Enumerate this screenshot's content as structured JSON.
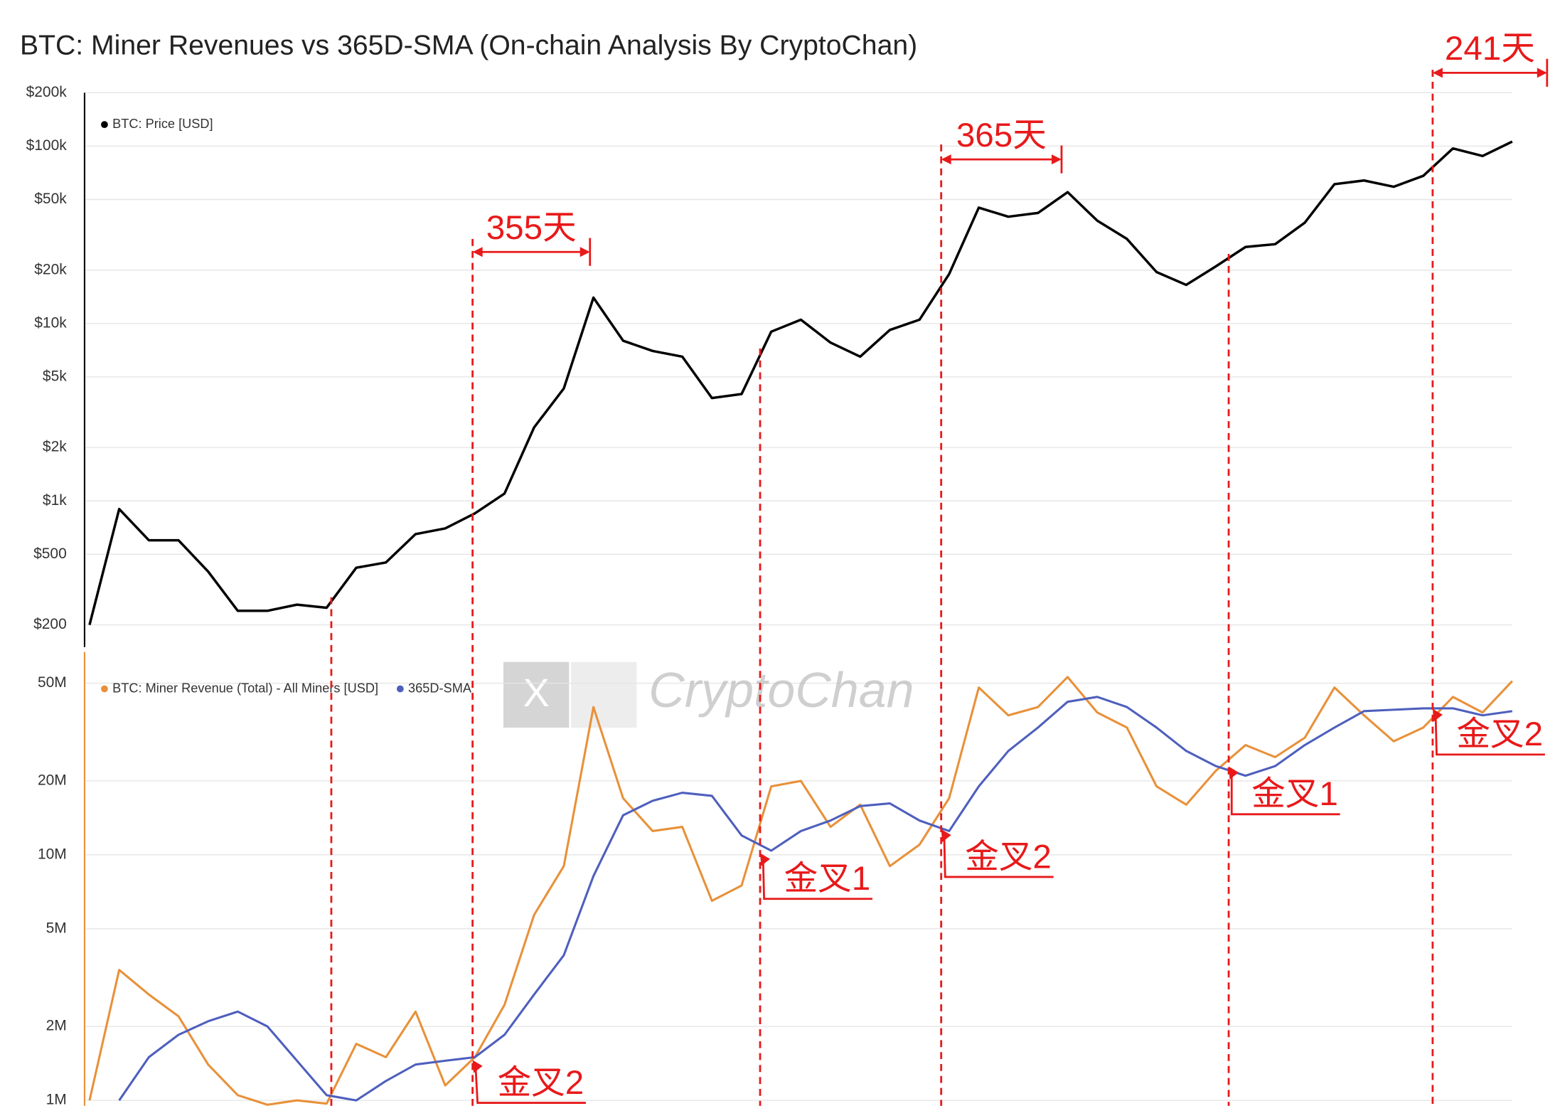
{
  "chart_data": [
    {
      "type": "line",
      "title": "BTC: Miner Revenues vs 365D-SMA (On-chain Analysis By CryptoChan)",
      "log": true,
      "grid": true,
      "ylim": [
        150,
        200000
      ],
      "yticks": [
        {
          "value": 200,
          "label": "$200"
        },
        {
          "value": 500,
          "label": "$500"
        },
        {
          "value": 1000,
          "label": "$1k"
        },
        {
          "value": 2000,
          "label": "$2k"
        },
        {
          "value": 5000,
          "label": "$5k"
        },
        {
          "value": 10000,
          "label": "$10k"
        },
        {
          "value": 20000,
          "label": "$20k"
        },
        {
          "value": 50000,
          "label": "$50k"
        },
        {
          "value": 100000,
          "label": "$100k"
        },
        {
          "value": 200000,
          "label": "$200k"
        }
      ],
      "series": [
        {
          "name": "BTC: Price [USD]",
          "color": "#000000",
          "values": [
            200,
            900,
            600,
            600,
            400,
            240,
            240,
            260,
            250,
            420,
            450,
            650,
            700,
            850,
            1100,
            2600,
            4300,
            14000,
            8000,
            7000,
            6500,
            3800,
            4000,
            9000,
            10500,
            7800,
            6500,
            9200,
            10500,
            19000,
            45000,
            40000,
            42000,
            55000,
            38000,
            30000,
            19500,
            16500,
            21000,
            27000,
            28000,
            37000,
            61000,
            64000,
            59000,
            68000,
            97000,
            88000,
            106000
          ]
        }
      ],
      "annotations": [
        "355天",
        "365天",
        "241天"
      ]
    },
    {
      "type": "line",
      "log": true,
      "grid": true,
      "ylim": [
        950000,
        67000000
      ],
      "yticks": [
        {
          "value": 1000000,
          "label": "1M"
        },
        {
          "value": 2000000,
          "label": "2M"
        },
        {
          "value": 5000000,
          "label": "5M"
        },
        {
          "value": 10000000,
          "label": "10M"
        },
        {
          "value": 20000000,
          "label": "20M"
        },
        {
          "value": 50000000,
          "label": "50M"
        }
      ],
      "series": [
        {
          "name": "BTC: Miner Revenue (Total) - All Miners [USD]",
          "color": "#e8913a",
          "values": [
            1000000,
            3400000,
            2700000,
            2200000,
            1400000,
            1050000,
            960000,
            1000000,
            970000,
            1700000,
            1500000,
            2300000,
            1150000,
            1500000,
            2450000,
            5700000,
            9000000,
            40000000,
            17000000,
            12500000,
            13000000,
            6500000,
            7500000,
            19000000,
            20000000,
            13000000,
            16000000,
            9000000,
            11000000,
            17000000,
            48000000,
            37000000,
            40000000,
            53000000,
            38000000,
            33000000,
            19000000,
            16000000,
            22000000,
            28000000,
            25000000,
            30000000,
            48000000,
            37000000,
            29000000,
            33000000,
            44000000,
            38000000,
            51000000
          ]
        },
        {
          "name": "365D-SMA",
          "color": "#4e5fbd",
          "values": [
            null,
            1000000,
            1500000,
            1850000,
            2100000,
            2300000,
            2000000,
            1450000,
            1050000,
            1000000,
            1200000,
            1400000,
            1450000,
            1500000,
            1850000,
            2700000,
            3900000,
            8200000,
            14500000,
            16600000,
            17900000,
            17400000,
            12000000,
            10400000,
            12500000,
            13800000,
            15800000,
            16200000,
            13800000,
            12500000,
            19000000,
            26500000,
            33000000,
            42000000,
            44000000,
            40000000,
            33000000,
            26500000,
            23000000,
            21000000,
            23000000,
            28000000,
            33000000,
            38500000,
            39000000,
            39500000,
            39500000,
            37000000,
            38500000
          ]
        }
      ],
      "annotations": [
        "金叉2",
        "金叉1",
        "金叉2",
        "金叉1",
        "金叉2"
      ],
      "watermark": "CryptoChan"
    }
  ]
}
